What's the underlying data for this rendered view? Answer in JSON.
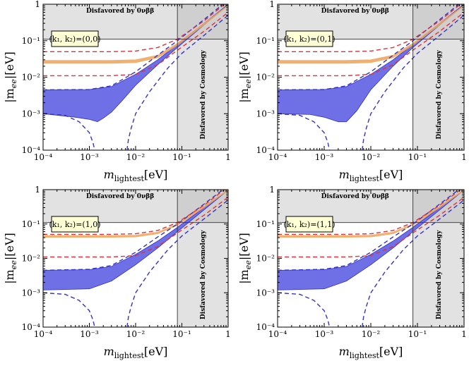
{
  "figure": {
    "title": "",
    "xlabel": "m_lightest[eV]",
    "xlabel_main": "m",
    "xlabel_sub": "lightest",
    "xlabel_unit": "[eV]",
    "ylabel": "|m_ee|[eV]",
    "ylabel_pre": "|m",
    "ylabel_sub": "ee",
    "ylabel_post": "|[eV]",
    "shade_top": "Disfavored by 0νββ",
    "shade_right": "Disfavored by Cosmology",
    "colors": {
      "blue": "#3333cc",
      "blue_fill": "#6f6fe6",
      "red": "#e0303a",
      "orange": "#f0a860",
      "shade": "#e2e2e2",
      "box_fill": "#ffffd6"
    }
  },
  "chart_data": [
    {
      "type": "line",
      "panel": "(k1,k2)=(0,0)",
      "box_label": "(k₁, k₂)=(0,0)",
      "xscale": "log",
      "yscale": "log",
      "xlim": [
        0.0001,
        1
      ],
      "ylim": [
        0.0001,
        1
      ],
      "xticks": [
        "10⁻⁴",
        "10⁻³",
        "10⁻²",
        "10⁻¹",
        "1"
      ],
      "yticks": [
        "10⁻⁴",
        "10⁻³",
        "10⁻²",
        "10⁻¹",
        "1"
      ],
      "limits": {
        "onubb_m_ee": 0.11,
        "cosmology_m_lightest": 0.08
      },
      "series": [
        {
          "kind": "blue-band-upper",
          "x": [
            0.0001,
            0.001,
            0.003,
            0.01,
            0.03,
            0.08,
            1
          ],
          "y": [
            0.0045,
            0.0046,
            0.0055,
            0.012,
            0.03,
            0.08,
            1.0
          ]
        },
        {
          "kind": "blue-band-lower",
          "x": [
            0.0001,
            0.0005,
            0.001,
            0.0015,
            0.002,
            0.003,
            0.005,
            0.01,
            0.03,
            0.08,
            1
          ],
          "y": [
            0.001,
            0.0008,
            0.0007,
            0.0006,
            0.00075,
            0.0011,
            0.0022,
            0.006,
            0.022,
            0.065,
            0.98
          ]
        },
        {
          "kind": "blue-dashed-upper",
          "x": [
            0.0001,
            0.001,
            0.003,
            0.01,
            0.03,
            0.08,
            0.3,
            1
          ],
          "y": [
            0.0045,
            0.0046,
            0.0058,
            0.014,
            0.04,
            0.1,
            0.38,
            1.3
          ]
        },
        {
          "kind": "blue-dashed-lower",
          "x": [
            0.0001,
            0.0003,
            0.0006,
            0.001,
            0.0012,
            0.0013
          ],
          "y": [
            0.001,
            0.0009,
            0.0006,
            0.0003,
            0.00016,
            0.0001
          ]
        },
        {
          "kind": "blue-dashed-lower-right",
          "x": [
            0.0065,
            0.007,
            0.008,
            0.01,
            0.02,
            0.05,
            0.1,
            0.3,
            1
          ],
          "y": [
            0.0001,
            0.0002,
            0.0004,
            0.001,
            0.004,
            0.018,
            0.045,
            0.14,
            0.5
          ]
        },
        {
          "kind": "red-dashed-upper",
          "x": [
            0.0001,
            0.003,
            0.01,
            0.03,
            0.08,
            0.3,
            1
          ],
          "y": [
            0.05,
            0.05,
            0.052,
            0.065,
            0.11,
            0.35,
            1.2
          ]
        },
        {
          "kind": "red-dashed-lower",
          "x": [
            0.0001,
            0.003,
            0.01,
            0.03,
            0.08,
            0.3,
            1
          ],
          "y": [
            0.011,
            0.011,
            0.012,
            0.022,
            0.055,
            0.18,
            0.6
          ]
        },
        {
          "kind": "orange-band-upper",
          "x": [
            0.0001,
            0.003,
            0.01,
            0.03,
            0.08,
            0.3,
            1
          ],
          "y": [
            0.029,
            0.029,
            0.03,
            0.04,
            0.085,
            0.3,
            0.95
          ]
        },
        {
          "kind": "orange-band-lower",
          "x": [
            0.0001,
            0.003,
            0.01,
            0.03,
            0.08,
            0.3,
            1
          ],
          "y": [
            0.024,
            0.024,
            0.025,
            0.034,
            0.075,
            0.27,
            0.9
          ]
        }
      ]
    },
    {
      "type": "line",
      "panel": "(k1,k2)=(0,1)",
      "box_label": "(k₁, k₂)=(0,1)",
      "xscale": "log",
      "yscale": "log",
      "xlim": [
        0.0001,
        1
      ],
      "ylim": [
        0.0001,
        1
      ],
      "xticks": [
        "10⁻⁴",
        "10⁻³",
        "10⁻²",
        "10⁻¹",
        "1"
      ],
      "yticks": [
        "10⁻⁴",
        "10⁻³",
        "10⁻²",
        "10⁻¹",
        "1"
      ],
      "limits": {
        "onubb_m_ee": 0.11,
        "cosmology_m_lightest": 0.08
      },
      "series": [
        {
          "kind": "blue-band-upper",
          "x": [
            0.0001,
            0.001,
            0.003,
            0.01,
            0.03,
            0.08,
            1
          ],
          "y": [
            0.0045,
            0.0046,
            0.0055,
            0.012,
            0.03,
            0.08,
            1.0
          ]
        },
        {
          "kind": "blue-band-lower",
          "x": [
            0.0001,
            0.0005,
            0.001,
            0.002,
            0.003,
            0.005,
            0.01,
            0.03,
            0.08,
            1
          ],
          "y": [
            0.001,
            0.00095,
            0.0008,
            0.0006,
            0.0006,
            0.0012,
            0.0045,
            0.02,
            0.065,
            0.98
          ]
        },
        {
          "kind": "blue-dashed-upper",
          "x": [
            0.0001,
            0.001,
            0.003,
            0.01,
            0.03,
            0.08,
            0.3,
            1
          ],
          "y": [
            0.0045,
            0.0046,
            0.0058,
            0.014,
            0.04,
            0.1,
            0.38,
            1.3
          ]
        },
        {
          "kind": "blue-dashed-lower",
          "x": [
            0.0001,
            0.0003,
            0.0006,
            0.001,
            0.0012,
            0.0013
          ],
          "y": [
            0.001,
            0.0009,
            0.0006,
            0.0003,
            0.00016,
            0.0001
          ]
        },
        {
          "kind": "blue-dashed-lower-right",
          "x": [
            0.0065,
            0.007,
            0.008,
            0.01,
            0.02,
            0.05,
            0.1,
            0.3,
            1
          ],
          "y": [
            0.0001,
            0.0002,
            0.0004,
            0.001,
            0.004,
            0.018,
            0.045,
            0.14,
            0.5
          ]
        },
        {
          "kind": "red-dashed-upper",
          "x": [
            0.0001,
            0.003,
            0.01,
            0.03,
            0.08,
            0.3,
            1
          ],
          "y": [
            0.05,
            0.05,
            0.052,
            0.065,
            0.11,
            0.35,
            1.2
          ]
        },
        {
          "kind": "red-dashed-lower",
          "x": [
            0.0001,
            0.003,
            0.01,
            0.03,
            0.08,
            0.3,
            1
          ],
          "y": [
            0.011,
            0.011,
            0.012,
            0.022,
            0.055,
            0.18,
            0.6
          ]
        },
        {
          "kind": "orange-band-upper",
          "x": [
            0.0001,
            0.003,
            0.01,
            0.03,
            0.08,
            0.3,
            1
          ],
          "y": [
            0.029,
            0.029,
            0.03,
            0.04,
            0.085,
            0.3,
            0.95
          ]
        },
        {
          "kind": "orange-band-lower",
          "x": [
            0.0001,
            0.003,
            0.01,
            0.03,
            0.08,
            0.3,
            1
          ],
          "y": [
            0.024,
            0.024,
            0.025,
            0.034,
            0.075,
            0.27,
            0.9
          ]
        }
      ]
    },
    {
      "type": "line",
      "panel": "(k1,k2)=(1,0)",
      "box_label": "(k₁, k₂)=(1,0)",
      "xscale": "log",
      "yscale": "log",
      "xlim": [
        0.0001,
        1
      ],
      "ylim": [
        0.0001,
        1
      ],
      "xticks": [
        "10⁻⁴",
        "10⁻³",
        "10⁻²",
        "10⁻¹",
        "1"
      ],
      "yticks": [
        "10⁻⁴",
        "10⁻³",
        "10⁻²",
        "10⁻¹",
        "1"
      ],
      "limits": {
        "onubb_m_ee": 0.11,
        "cosmology_m_lightest": 0.08
      },
      "series": [
        {
          "kind": "blue-band-upper",
          "x": [
            0.0001,
            0.001,
            0.003,
            0.01,
            0.03,
            0.08,
            1
          ],
          "y": [
            0.0045,
            0.0047,
            0.0058,
            0.013,
            0.032,
            0.08,
            1.0
          ]
        },
        {
          "kind": "blue-band-lower",
          "x": [
            0.0001,
            0.001,
            0.003,
            0.01,
            0.03,
            0.08,
            1
          ],
          "y": [
            0.0012,
            0.0013,
            0.0022,
            0.0065,
            0.02,
            0.06,
            0.97
          ]
        },
        {
          "kind": "blue-dashed-upper",
          "x": [
            0.0001,
            0.001,
            0.003,
            0.01,
            0.03,
            0.08,
            0.3,
            1
          ],
          "y": [
            0.0045,
            0.0048,
            0.0062,
            0.015,
            0.042,
            0.1,
            0.38,
            1.3
          ]
        },
        {
          "kind": "blue-dashed-lower",
          "x": [
            0.0001,
            0.0003,
            0.0006,
            0.001,
            0.0012,
            0.0013
          ],
          "y": [
            0.001,
            0.0009,
            0.0006,
            0.0003,
            0.00016,
            0.0001
          ]
        },
        {
          "kind": "blue-dashed-lower-right",
          "x": [
            0.0065,
            0.007,
            0.008,
            0.01,
            0.02,
            0.05,
            0.1,
            0.3,
            1
          ],
          "y": [
            0.0001,
            0.0002,
            0.0004,
            0.001,
            0.004,
            0.018,
            0.045,
            0.14,
            0.5
          ]
        },
        {
          "kind": "red-dashed-upper",
          "x": [
            0.0001,
            0.003,
            0.01,
            0.03,
            0.08,
            0.3,
            1
          ],
          "y": [
            0.05,
            0.05,
            0.052,
            0.065,
            0.11,
            0.35,
            1.2
          ]
        },
        {
          "kind": "red-dashed-lower",
          "x": [
            0.0001,
            0.003,
            0.01,
            0.03,
            0.08,
            0.3,
            1
          ],
          "y": [
            0.011,
            0.011,
            0.012,
            0.022,
            0.055,
            0.18,
            0.6
          ]
        },
        {
          "kind": "orange-band-upper",
          "x": [
            0.0001,
            0.003,
            0.01,
            0.03,
            0.08,
            0.3,
            1
          ],
          "y": [
            0.046,
            0.046,
            0.047,
            0.058,
            0.1,
            0.33,
            1.0
          ]
        },
        {
          "kind": "orange-band-lower",
          "x": [
            0.0001,
            0.003,
            0.01,
            0.03,
            0.08,
            0.3,
            1
          ],
          "y": [
            0.041,
            0.041,
            0.042,
            0.052,
            0.092,
            0.3,
            0.95
          ]
        }
      ]
    },
    {
      "type": "line",
      "panel": "(k1,k2)=(1,1)",
      "box_label": "(k₁, k₂)=(1,1)",
      "xscale": "log",
      "yscale": "log",
      "xlim": [
        0.0001,
        1
      ],
      "ylim": [
        0.0001,
        1
      ],
      "xticks": [
        "10⁻⁴",
        "10⁻³",
        "10⁻²",
        "10⁻¹",
        "1"
      ],
      "yticks": [
        "10⁻⁴",
        "10⁻³",
        "10⁻²",
        "10⁻¹",
        "1"
      ],
      "limits": {
        "onubb_m_ee": 0.11,
        "cosmology_m_lightest": 0.08
      },
      "series": [
        {
          "kind": "blue-band-upper",
          "x": [
            0.0001,
            0.001,
            0.003,
            0.01,
            0.03,
            0.08,
            1
          ],
          "y": [
            0.0045,
            0.0047,
            0.0058,
            0.013,
            0.032,
            0.08,
            1.0
          ]
        },
        {
          "kind": "blue-band-lower",
          "x": [
            0.0001,
            0.001,
            0.003,
            0.01,
            0.03,
            0.08,
            1
          ],
          "y": [
            0.0012,
            0.0013,
            0.0022,
            0.0065,
            0.02,
            0.06,
            0.97
          ]
        },
        {
          "kind": "blue-dashed-upper",
          "x": [
            0.0001,
            0.001,
            0.003,
            0.01,
            0.03,
            0.08,
            0.3,
            1
          ],
          "y": [
            0.0045,
            0.0048,
            0.0062,
            0.015,
            0.042,
            0.1,
            0.38,
            1.3
          ]
        },
        {
          "kind": "blue-dashed-lower",
          "x": [
            0.0001,
            0.0003,
            0.0006,
            0.001,
            0.0012,
            0.0013
          ],
          "y": [
            0.001,
            0.0009,
            0.0006,
            0.0003,
            0.00016,
            0.0001
          ]
        },
        {
          "kind": "blue-dashed-lower-right",
          "x": [
            0.0065,
            0.007,
            0.008,
            0.01,
            0.02,
            0.05,
            0.1,
            0.3,
            1
          ],
          "y": [
            0.0001,
            0.0002,
            0.0004,
            0.001,
            0.004,
            0.018,
            0.045,
            0.14,
            0.5
          ]
        },
        {
          "kind": "red-dashed-upper",
          "x": [
            0.0001,
            0.003,
            0.01,
            0.03,
            0.08,
            0.3,
            1
          ],
          "y": [
            0.05,
            0.05,
            0.052,
            0.065,
            0.11,
            0.35,
            1.2
          ]
        },
        {
          "kind": "red-dashed-lower",
          "x": [
            0.0001,
            0.003,
            0.01,
            0.03,
            0.08,
            0.3,
            1
          ],
          "y": [
            0.011,
            0.011,
            0.012,
            0.022,
            0.055,
            0.18,
            0.6
          ]
        },
        {
          "kind": "orange-band-upper",
          "x": [
            0.0001,
            0.003,
            0.01,
            0.03,
            0.08,
            0.3,
            1
          ],
          "y": [
            0.046,
            0.046,
            0.047,
            0.058,
            0.1,
            0.33,
            1.0
          ]
        },
        {
          "kind": "orange-band-lower",
          "x": [
            0.0001,
            0.003,
            0.01,
            0.03,
            0.08,
            0.3,
            1
          ],
          "y": [
            0.041,
            0.041,
            0.042,
            0.052,
            0.092,
            0.3,
            0.95
          ]
        }
      ]
    }
  ]
}
